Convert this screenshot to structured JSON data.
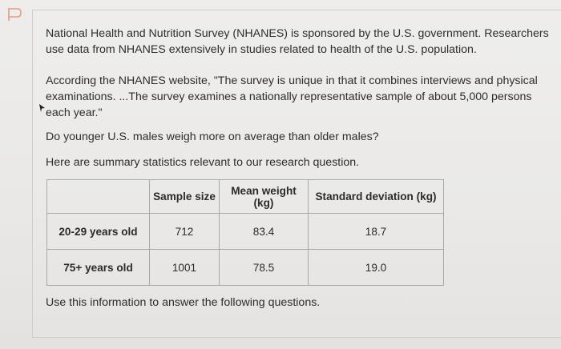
{
  "paragraphs": {
    "intro": "National Health and Nutrition Survey (NHANES) is sponsored by the U.S. government. Researchers use data from NHANES extensively in studies related to health of the U.S. population.",
    "quote": "According the NHANES website, \"The survey is unique in that it combines interviews and physical examinations. ...The survey examines a nationally representative sample of about 5,000 persons each year.\"",
    "question": "Do younger U.S. males weigh more on average than older males?",
    "lead_in": "Here are summary statistics relevant to our research question.",
    "closing": "Use this information to answer the following questions."
  },
  "table": {
    "headers": [
      "",
      "Sample size",
      "Mean weight (kg)",
      "Standard deviation (kg)"
    ],
    "rows": [
      {
        "label": "20-29 years old",
        "sample_size": "712",
        "mean": "83.4",
        "sd": "18.7"
      },
      {
        "label": "75+ years old",
        "sample_size": "1001",
        "mean": "78.5",
        "sd": "19.0"
      }
    ]
  },
  "icons": {
    "flag": "bookmark-flag-icon"
  },
  "colors": {
    "flag_stroke": "#e59a88",
    "text": "#2d2d2d",
    "border": "#a9a8a5"
  }
}
